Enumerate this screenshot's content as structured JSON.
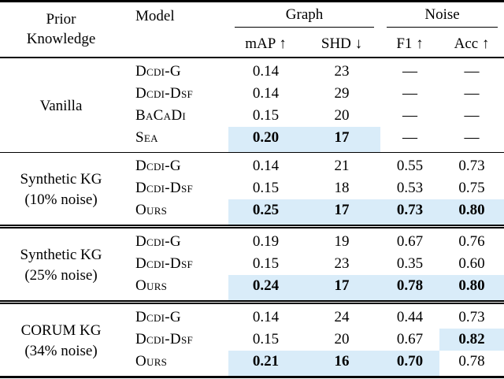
{
  "header": {
    "prior_knowledge_line1": "Prior",
    "prior_knowledge_line2": "Knowledge",
    "model": "Model",
    "group_graph": "Graph",
    "group_noise": "Noise",
    "col_map": "mAP ↑",
    "col_shd": "SHD ↓",
    "col_f1": "F1 ↑",
    "col_acc": "Acc ↑"
  },
  "columns": [
    "map",
    "shd",
    "f1",
    "acc"
  ],
  "groups": [
    {
      "prior_line1": "Vanilla",
      "prior_line2": "",
      "rows": [
        {
          "model": "Dcdi-G",
          "values": {
            "map": "0.14",
            "shd": "23",
            "f1": "—",
            "acc": "—"
          },
          "bold": [],
          "highlight": []
        },
        {
          "model": "Dcdi-Dsf",
          "values": {
            "map": "0.14",
            "shd": "29",
            "f1": "—",
            "acc": "—"
          },
          "bold": [],
          "highlight": []
        },
        {
          "model": "BaCaDi",
          "values": {
            "map": "0.15",
            "shd": "20",
            "f1": "—",
            "acc": "—"
          },
          "bold": [],
          "highlight": []
        },
        {
          "model": "Sea",
          "values": {
            "map": "0.20",
            "shd": "17",
            "f1": "—",
            "acc": "—"
          },
          "bold": [
            "map",
            "shd"
          ],
          "highlight": [
            "map",
            "shd"
          ]
        }
      ]
    },
    {
      "prior_line1": "Synthetic KG",
      "prior_line2": "(10% noise)",
      "rows": [
        {
          "model": "Dcdi-G",
          "values": {
            "map": "0.14",
            "shd": "21",
            "f1": "0.55",
            "acc": "0.73"
          },
          "bold": [],
          "highlight": []
        },
        {
          "model": "Dcdi-Dsf",
          "values": {
            "map": "0.15",
            "shd": "18",
            "f1": "0.53",
            "acc": "0.75"
          },
          "bold": [],
          "highlight": []
        },
        {
          "model": "Ours",
          "values": {
            "map": "0.25",
            "shd": "17",
            "f1": "0.73",
            "acc": "0.80"
          },
          "bold": [
            "map",
            "shd",
            "f1",
            "acc"
          ],
          "highlight": [
            "map",
            "shd",
            "f1",
            "acc"
          ]
        }
      ]
    },
    {
      "prior_line1": "Synthetic KG",
      "prior_line2": "(25% noise)",
      "rows": [
        {
          "model": "Dcdi-G",
          "values": {
            "map": "0.19",
            "shd": "19",
            "f1": "0.67",
            "acc": "0.76"
          },
          "bold": [],
          "highlight": []
        },
        {
          "model": "Dcdi-Dsf",
          "values": {
            "map": "0.15",
            "shd": "23",
            "f1": "0.35",
            "acc": "0.60"
          },
          "bold": [],
          "highlight": []
        },
        {
          "model": "Ours",
          "values": {
            "map": "0.24",
            "shd": "17",
            "f1": "0.78",
            "acc": "0.80"
          },
          "bold": [
            "map",
            "shd",
            "f1",
            "acc"
          ],
          "highlight": [
            "map",
            "shd",
            "f1",
            "acc"
          ]
        }
      ]
    },
    {
      "prior_line1": "CORUM KG",
      "prior_line2": "(34% noise)",
      "rows": [
        {
          "model": "Dcdi-G",
          "values": {
            "map": "0.14",
            "shd": "24",
            "f1": "0.44",
            "acc": "0.73"
          },
          "bold": [],
          "highlight": []
        },
        {
          "model": "Dcdi-Dsf",
          "values": {
            "map": "0.15",
            "shd": "20",
            "f1": "0.67",
            "acc": "0.82"
          },
          "bold": [
            "acc"
          ],
          "highlight": [
            "acc"
          ]
        },
        {
          "model": "Ours",
          "values": {
            "map": "0.21",
            "shd": "16",
            "f1": "0.70",
            "acc": "0.78"
          },
          "bold": [
            "map",
            "shd",
            "f1"
          ],
          "highlight": [
            "map",
            "shd",
            "f1"
          ]
        }
      ]
    }
  ],
  "colors": {
    "highlight": "#d9ecf9",
    "rule": "#000000",
    "text": "#000000",
    "background": "#ffffff"
  }
}
